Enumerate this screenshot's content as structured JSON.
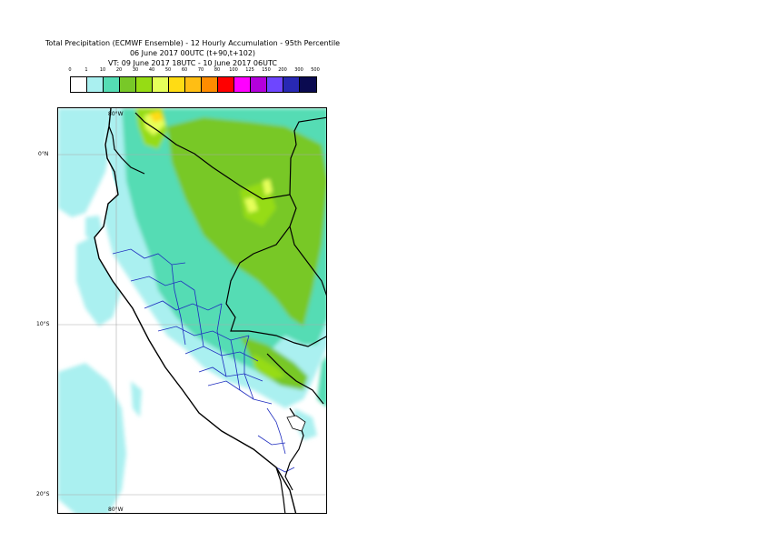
{
  "header": {
    "title_line1": "Total Precipitation (ECMWF Ensemble) - 12 Hourly Accumulation - 95th Percentile",
    "title_line2": "06 June 2017 00UTC (t+90,t+102)",
    "title_line3": "VT: 09 June 2017 18UTC - 10 June 2017 06UTC"
  },
  "legend": {
    "ticks": [
      "0",
      "1",
      "10",
      "20",
      "30",
      "40",
      "50",
      "60",
      "70",
      "80",
      "100",
      "125",
      "150",
      "200",
      "300",
      "500"
    ],
    "colors": [
      "#ffffff",
      "#aaf0f0",
      "#55dcb4",
      "#78c828",
      "#96dc14",
      "#e6ff5a",
      "#ffdc14",
      "#ffbe14",
      "#ff8c00",
      "#ff0000",
      "#ff00ff",
      "#b400dc",
      "#6e46ff",
      "#2828b4",
      "#0a0a50"
    ]
  },
  "axes": {
    "top_lon": "80°W",
    "bottom_lon": "80°W",
    "lat_labels": [
      "0°N",
      "10°S",
      "20°S"
    ]
  }
}
